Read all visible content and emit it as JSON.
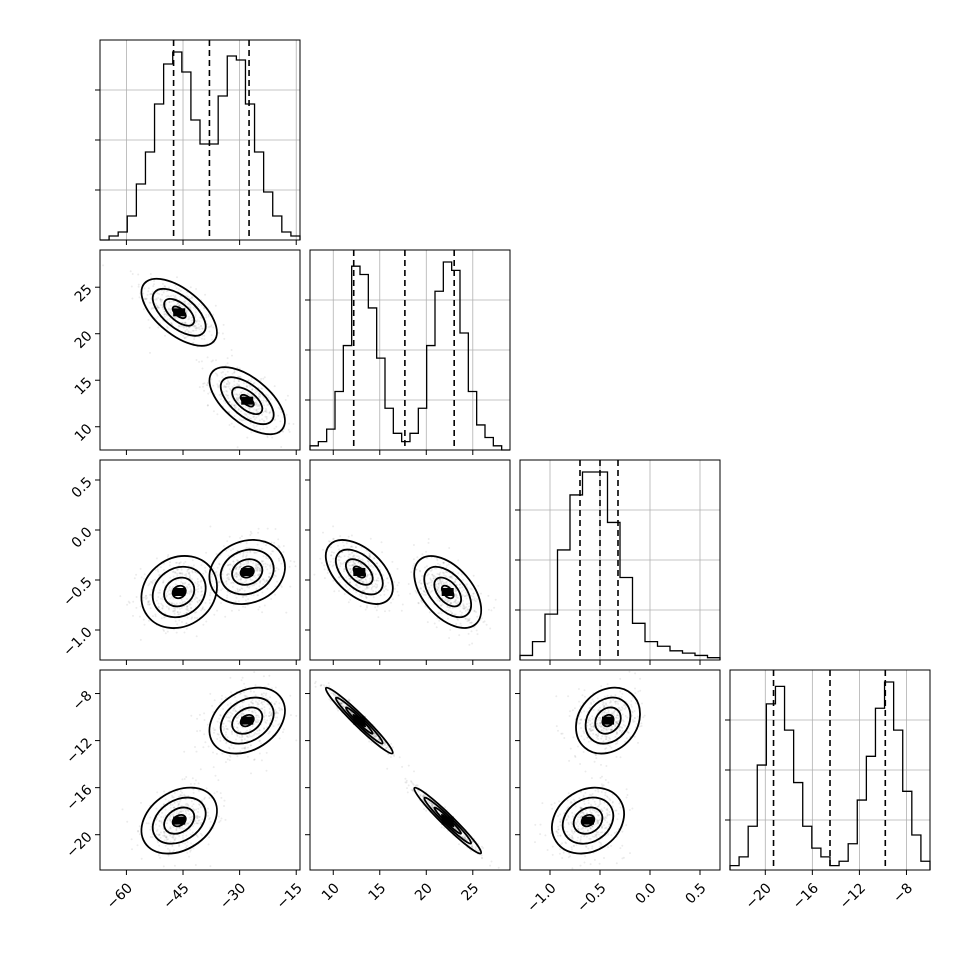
{
  "chart_data": {
    "type": "corner",
    "parameters": [
      {
        "id": "p0",
        "range": [
          -67,
          -14
        ],
        "ticks": [
          -60,
          -45,
          -30,
          -15
        ],
        "tick_labels": [
          "−60",
          "−45",
          "−30",
          "−15"
        ]
      },
      {
        "id": "p1",
        "range": [
          7.5,
          29
        ],
        "ticks": [
          10,
          15,
          20,
          25
        ],
        "tick_labels": [
          "10",
          "15",
          "20",
          "25"
        ]
      },
      {
        "id": "p2",
        "range": [
          -1.3,
          0.7
        ],
        "ticks": [
          -1.0,
          -0.5,
          0.0,
          0.5
        ],
        "tick_labels": [
          "−1.0",
          "−0.5",
          "0.0",
          "0.5"
        ]
      },
      {
        "id": "p3",
        "range": [
          -23,
          -6
        ],
        "ticks": [
          -20,
          -16,
          -12,
          -8
        ],
        "tick_labels": [
          "−20",
          "−16",
          "−12",
          "−8"
        ]
      }
    ],
    "quantiles": {
      "p0": [
        -47.5,
        -38.0,
        -27.5
      ],
      "p1": [
        12.2,
        17.7,
        23.0
      ],
      "p2": [
        -0.7,
        -0.5,
        -0.32
      ],
      "p3": [
        -19.3,
        -14.5,
        -9.8
      ]
    },
    "histograms": {
      "p0": [
        0,
        1,
        2,
        6,
        14,
        22,
        34,
        44,
        47,
        42,
        30,
        24,
        24,
        36,
        46,
        45,
        34,
        22,
        12,
        6,
        2,
        1
      ],
      "p1": [
        1,
        2,
        5,
        14,
        25,
        44,
        42,
        34,
        22,
        10,
        4,
        2,
        4,
        10,
        25,
        38,
        45,
        43,
        28,
        14,
        6,
        3,
        1,
        0
      ],
      "p2": [
        1,
        4,
        10,
        24,
        36,
        41,
        41,
        30,
        18,
        8,
        4,
        3,
        2,
        1.5,
        1,
        0.5
      ],
      "p3": [
        1,
        3,
        10,
        24,
        38,
        42,
        32,
        20,
        10,
        5,
        3,
        1,
        2,
        6,
        16,
        26,
        37,
        43,
        32,
        18,
        8,
        2
      ]
    },
    "clusters": [
      {
        "p0": -46,
        "p1": 22.3,
        "p2": -0.62,
        "p3": -18.8,
        "s0": 5.0,
        "s1": 1.8,
        "s2": 0.18,
        "s3": 1.4
      },
      {
        "p0": -28,
        "p1": 12.8,
        "p2": -0.42,
        "p3": -10.3,
        "s0": 5.0,
        "s1": 1.8,
        "s2": 0.16,
        "s3": 1.4
      }
    ],
    "scatter_points_per_panel": 420,
    "grid": true
  }
}
